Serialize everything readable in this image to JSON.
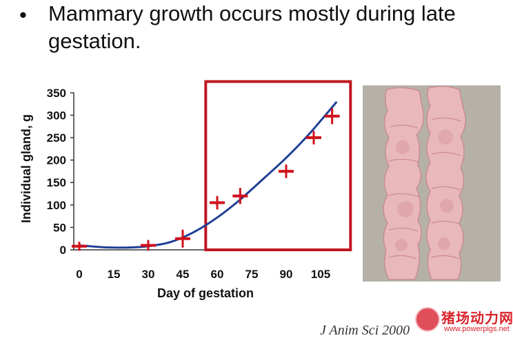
{
  "slide": {
    "bullet_symbol": "•",
    "bullet_text": "Mammary growth occurs mostly during late gestation.",
    "citation": "J Anim Sci 2000",
    "watermark_title": "猪场动力网",
    "watermark_url": "www.powerpigs.net"
  },
  "colors": {
    "marker": "#d0111b",
    "curve": "#1f3f95",
    "highlight_box": "#c0161f",
    "axis": "#333333"
  },
  "chart_data": {
    "type": "scatter",
    "xlabel": "Day of gestation",
    "ylabel": "Individual gland, g",
    "xticks": [
      0,
      15,
      30,
      45,
      60,
      75,
      90,
      105
    ],
    "yticks": [
      0,
      50,
      100,
      150,
      200,
      250,
      300,
      350
    ],
    "xlim": [
      0,
      112
    ],
    "ylim": [
      0,
      350
    ],
    "points": [
      {
        "x": 0,
        "y": 8,
        "err": 10
      },
      {
        "x": 30,
        "y": 10,
        "err": 12
      },
      {
        "x": 45,
        "y": 25,
        "err": 20
      },
      {
        "x": 60,
        "y": 105,
        "err": 15
      },
      {
        "x": 70,
        "y": 120,
        "err": 18
      },
      {
        "x": 90,
        "y": 175,
        "err": 15
      },
      {
        "x": 102,
        "y": 250,
        "err": 15
      },
      {
        "x": 110,
        "y": 298,
        "err": 18
      }
    ],
    "fit_curve": {
      "name": "",
      "x": [
        0,
        10,
        20,
        30,
        40,
        50,
        60,
        70,
        80,
        90,
        100,
        112
      ],
      "y": [
        10,
        6,
        5,
        8,
        18,
        40,
        72,
        112,
        158,
        205,
        258,
        330
      ]
    },
    "highlight_range": {
      "x": [
        55,
        118
      ],
      "y": [
        0,
        375
      ]
    },
    "grid": false,
    "legend": "none"
  }
}
